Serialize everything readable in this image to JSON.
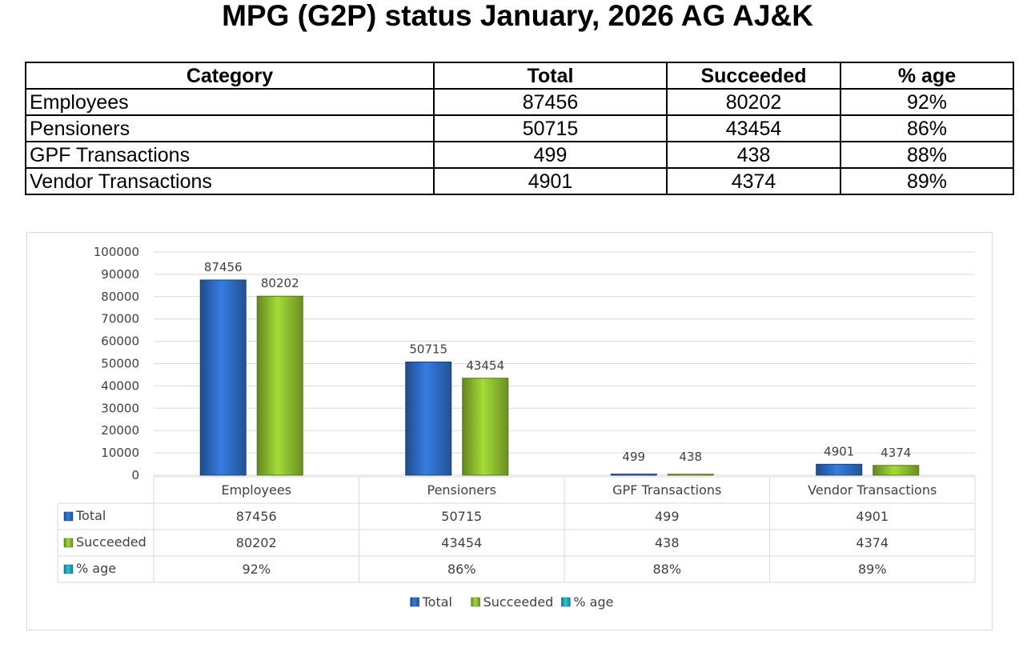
{
  "title": "MPG (G2P) status January, 2026 AG AJ&K",
  "table": {
    "headers": [
      "Category",
      "Total",
      "Succeeded",
      "% age"
    ],
    "rows": [
      [
        "Employees",
        "87456",
        "80202",
        "92%"
      ],
      [
        "Pensioners",
        "50715",
        "43454",
        "86%"
      ],
      [
        "GPF Transactions",
        "499",
        "438",
        "88%"
      ],
      [
        "Vendor Transactions",
        "4901",
        "4374",
        "89%"
      ]
    ]
  },
  "chart_data": {
    "type": "bar",
    "categories": [
      "Employees",
      "Pensioners",
      "GPF Transactions",
      "Vendor Transactions"
    ],
    "series": [
      {
        "name": "Total",
        "values": [
          87456,
          50715,
          499,
          4901
        ],
        "color": "#2e6dc4",
        "show_bar": true
      },
      {
        "name": "Succeeded",
        "values": [
          80202,
          43454,
          438,
          4374
        ],
        "color": "#8fbf2f",
        "show_bar": true
      },
      {
        "name": "% age",
        "values": [
          0.92,
          0.86,
          0.88,
          0.89
        ],
        "display": [
          "92%",
          "86%",
          "88%",
          "89%"
        ],
        "color": "#27a9c4",
        "show_bar": false
      }
    ],
    "ylim": [
      0,
      100000
    ],
    "yticks": [
      "0",
      "10000",
      "20000",
      "30000",
      "40000",
      "50000",
      "60000",
      "70000",
      "80000",
      "90000",
      "100000"
    ],
    "grid": true,
    "data_table": true,
    "legend": "bottom",
    "title": "",
    "xlabel": "",
    "ylabel": ""
  }
}
